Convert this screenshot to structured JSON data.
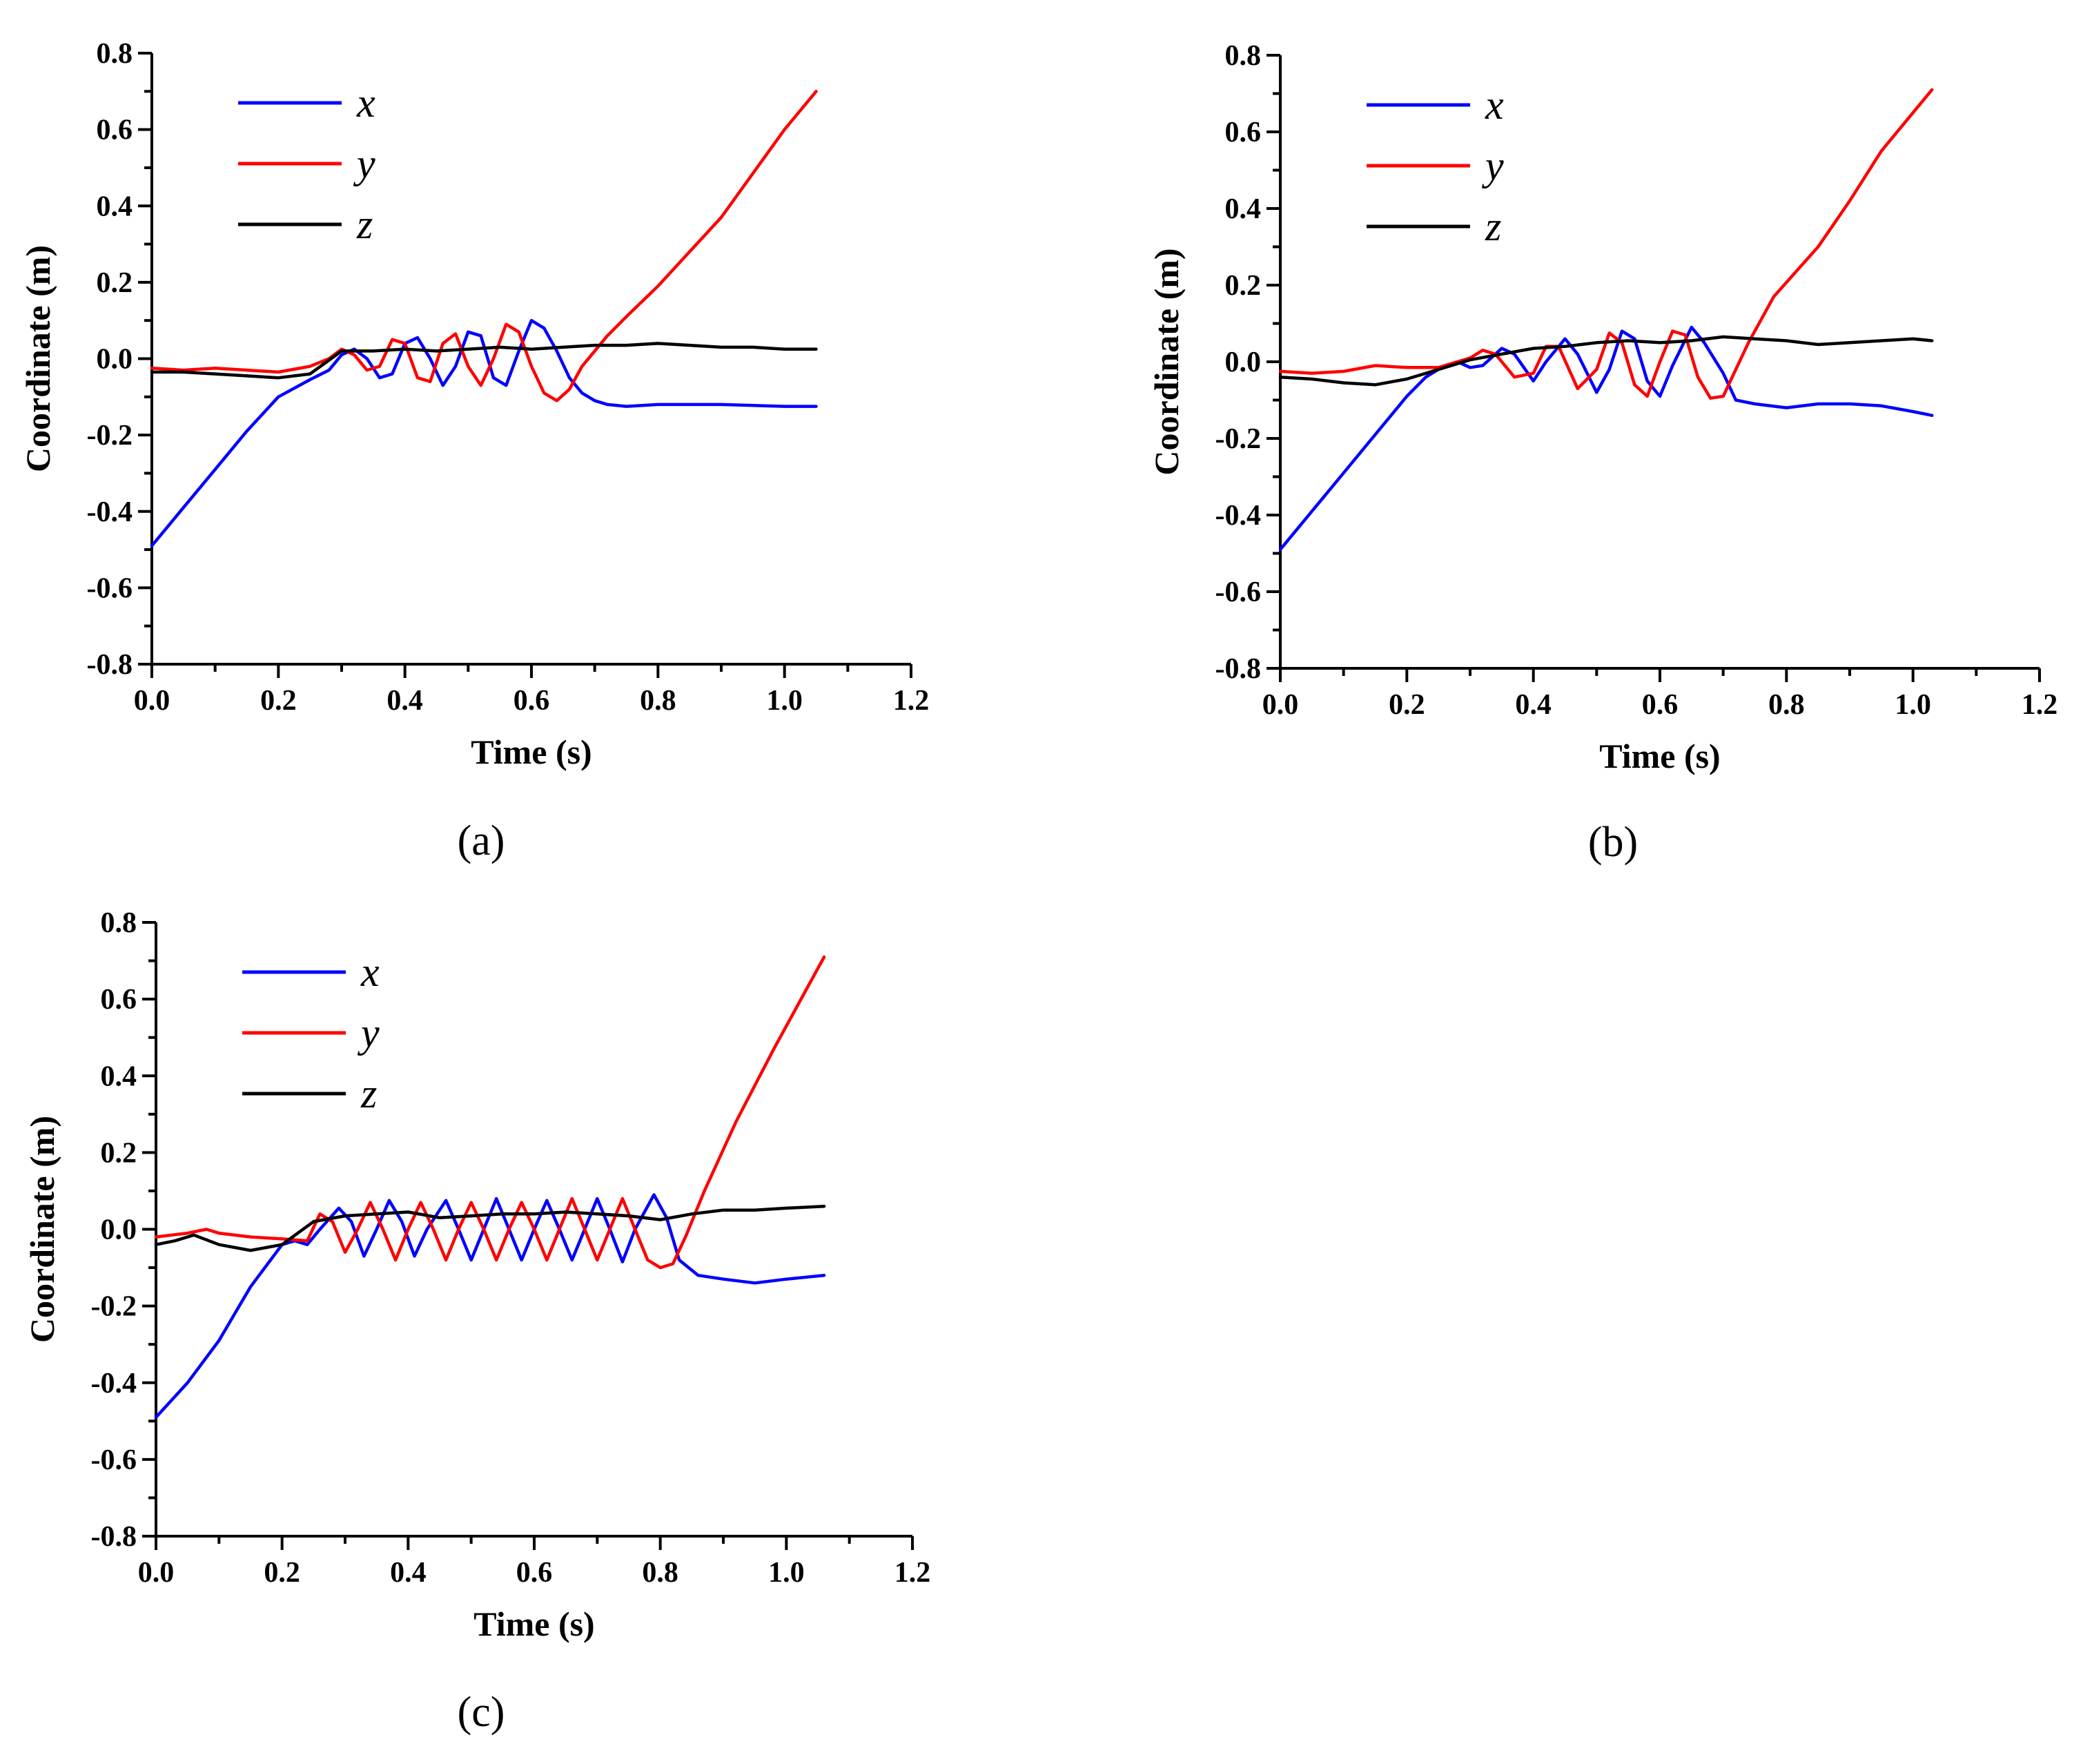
{
  "chart_data": [
    {
      "type": "line",
      "panel_label": "(a)",
      "xlabel": "Time (s)",
      "ylabel": "Coordinate (m)",
      "xlim": [
        0.0,
        1.2
      ],
      "ylim": [
        -0.8,
        0.8
      ],
      "xticks": [
        "0.0",
        "0.2",
        "0.4",
        "0.6",
        "0.8",
        "1.0",
        "1.2"
      ],
      "yticks": [
        "-0.8",
        "-0.6",
        "-0.4",
        "-0.2",
        "0.0",
        "0.2",
        "0.4",
        "0.6",
        "0.8"
      ],
      "legend_position": "top-left",
      "grid": false,
      "series": [
        {
          "name": "x",
          "color": "#0000ff",
          "x": [
            0.0,
            0.05,
            0.1,
            0.15,
            0.2,
            0.25,
            0.28,
            0.3,
            0.32,
            0.34,
            0.36,
            0.38,
            0.4,
            0.42,
            0.44,
            0.46,
            0.48,
            0.5,
            0.52,
            0.54,
            0.56,
            0.58,
            0.6,
            0.62,
            0.64,
            0.66,
            0.68,
            0.7,
            0.72,
            0.75,
            0.8,
            0.9,
            1.0,
            1.05
          ],
          "y": [
            -0.49,
            -0.39,
            -0.29,
            -0.19,
            -0.1,
            -0.055,
            -0.03,
            0.01,
            0.025,
            0.0,
            -0.05,
            -0.04,
            0.04,
            0.055,
            0.0,
            -0.07,
            -0.02,
            0.07,
            0.06,
            -0.05,
            -0.07,
            0.02,
            0.1,
            0.08,
            0.02,
            -0.05,
            -0.09,
            -0.11,
            -0.12,
            -0.125,
            -0.12,
            -0.12,
            -0.125,
            -0.125
          ]
        },
        {
          "name": "y",
          "color": "#ff0000",
          "x": [
            0.0,
            0.05,
            0.1,
            0.15,
            0.2,
            0.25,
            0.28,
            0.3,
            0.32,
            0.34,
            0.36,
            0.38,
            0.4,
            0.42,
            0.44,
            0.46,
            0.48,
            0.5,
            0.52,
            0.54,
            0.56,
            0.58,
            0.6,
            0.62,
            0.64,
            0.66,
            0.68,
            0.7,
            0.72,
            0.75,
            0.8,
            0.9,
            1.0,
            1.05
          ],
          "y": [
            -0.025,
            -0.03,
            -0.025,
            -0.03,
            -0.035,
            -0.02,
            0.0,
            0.025,
            0.01,
            -0.03,
            -0.02,
            0.05,
            0.04,
            -0.05,
            -0.06,
            0.04,
            0.065,
            -0.02,
            -0.07,
            0.0,
            0.09,
            0.07,
            -0.02,
            -0.09,
            -0.11,
            -0.08,
            -0.02,
            0.02,
            0.06,
            0.11,
            0.19,
            0.37,
            0.6,
            0.7
          ]
        },
        {
          "name": "z",
          "color": "#000000",
          "x": [
            0.0,
            0.05,
            0.1,
            0.15,
            0.2,
            0.25,
            0.3,
            0.35,
            0.4,
            0.45,
            0.5,
            0.55,
            0.6,
            0.65,
            0.7,
            0.75,
            0.8,
            0.85,
            0.9,
            0.95,
            1.0,
            1.05
          ],
          "y": [
            -0.035,
            -0.035,
            -0.04,
            -0.045,
            -0.05,
            -0.04,
            0.02,
            0.02,
            0.025,
            0.02,
            0.025,
            0.03,
            0.025,
            0.03,
            0.035,
            0.035,
            0.04,
            0.035,
            0.03,
            0.03,
            0.025,
            0.025
          ]
        }
      ]
    },
    {
      "type": "line",
      "panel_label": "(b)",
      "xlabel": "Time (s)",
      "ylabel": "Coordinate (m)",
      "xlim": [
        0.0,
        1.2
      ],
      "ylim": [
        -0.8,
        0.8
      ],
      "xticks": [
        "0.0",
        "0.2",
        "0.4",
        "0.6",
        "0.8",
        "1.0",
        "1.2"
      ],
      "yticks": [
        "-0.8",
        "-0.6",
        "-0.4",
        "-0.2",
        "0.0",
        "0.2",
        "0.4",
        "0.6",
        "0.8"
      ],
      "legend_position": "top-left",
      "grid": false,
      "series": [
        {
          "name": "x",
          "color": "#0000ff",
          "x": [
            0.0,
            0.05,
            0.1,
            0.15,
            0.2,
            0.23,
            0.26,
            0.28,
            0.3,
            0.32,
            0.35,
            0.37,
            0.4,
            0.42,
            0.45,
            0.47,
            0.5,
            0.52,
            0.54,
            0.56,
            0.58,
            0.6,
            0.62,
            0.65,
            0.67,
            0.7,
            0.72,
            0.75,
            0.8,
            0.85,
            0.9,
            0.95,
            1.0,
            1.03
          ],
          "y": [
            -0.49,
            -0.39,
            -0.29,
            -0.19,
            -0.09,
            -0.04,
            -0.01,
            0.0,
            -0.015,
            -0.01,
            0.035,
            0.02,
            -0.05,
            0.0,
            0.06,
            0.02,
            -0.08,
            -0.02,
            0.08,
            0.06,
            -0.05,
            -0.09,
            -0.01,
            0.09,
            0.05,
            -0.03,
            -0.1,
            -0.11,
            -0.12,
            -0.11,
            -0.11,
            -0.115,
            -0.13,
            -0.14
          ]
        },
        {
          "name": "y",
          "color": "#ff0000",
          "x": [
            0.0,
            0.05,
            0.1,
            0.15,
            0.2,
            0.25,
            0.3,
            0.32,
            0.34,
            0.37,
            0.4,
            0.42,
            0.44,
            0.47,
            0.5,
            0.52,
            0.54,
            0.56,
            0.58,
            0.6,
            0.62,
            0.64,
            0.66,
            0.68,
            0.7,
            0.72,
            0.74,
            0.78,
            0.85,
            0.9,
            0.95,
            1.0,
            1.03
          ],
          "y": [
            -0.025,
            -0.03,
            -0.025,
            -0.01,
            -0.015,
            -0.015,
            0.01,
            0.03,
            0.02,
            -0.04,
            -0.03,
            0.04,
            0.04,
            -0.07,
            -0.02,
            0.075,
            0.05,
            -0.06,
            -0.09,
            0.0,
            0.08,
            0.07,
            -0.04,
            -0.095,
            -0.09,
            -0.02,
            0.05,
            0.17,
            0.3,
            0.42,
            0.55,
            0.65,
            0.71
          ]
        },
        {
          "name": "z",
          "color": "#000000",
          "x": [
            0.0,
            0.05,
            0.1,
            0.15,
            0.2,
            0.25,
            0.3,
            0.35,
            0.4,
            0.45,
            0.5,
            0.55,
            0.6,
            0.65,
            0.7,
            0.75,
            0.8,
            0.85,
            0.9,
            0.95,
            1.0,
            1.03
          ],
          "y": [
            -0.04,
            -0.045,
            -0.055,
            -0.06,
            -0.045,
            -0.02,
            0.005,
            0.02,
            0.035,
            0.04,
            0.05,
            0.055,
            0.05,
            0.055,
            0.065,
            0.06,
            0.055,
            0.045,
            0.05,
            0.055,
            0.06,
            0.055
          ]
        }
      ]
    },
    {
      "type": "line",
      "panel_label": "(c)",
      "xlabel": "Time (s)",
      "ylabel": "Coordinate (m)",
      "xlim": [
        0.0,
        1.2
      ],
      "ylim": [
        -0.8,
        0.8
      ],
      "xticks": [
        "0.0",
        "0.2",
        "0.4",
        "0.6",
        "0.8",
        "1.0",
        "1.2"
      ],
      "yticks": [
        "-0.8",
        "-0.6",
        "-0.4",
        "-0.2",
        "0.0",
        "0.2",
        "0.4",
        "0.6",
        "0.8"
      ],
      "legend_position": "top-left",
      "grid": false,
      "series": [
        {
          "name": "x",
          "color": "#0000ff",
          "x": [
            0.0,
            0.05,
            0.1,
            0.15,
            0.2,
            0.22,
            0.24,
            0.26,
            0.29,
            0.31,
            0.33,
            0.35,
            0.37,
            0.39,
            0.41,
            0.43,
            0.46,
            0.48,
            0.5,
            0.52,
            0.54,
            0.56,
            0.58,
            0.6,
            0.62,
            0.64,
            0.66,
            0.68,
            0.7,
            0.72,
            0.74,
            0.76,
            0.79,
            0.81,
            0.83,
            0.86,
            0.9,
            0.95,
            1.0,
            1.06
          ],
          "y": [
            -0.49,
            -0.4,
            -0.29,
            -0.15,
            -0.04,
            -0.03,
            -0.04,
            0.0,
            0.055,
            0.02,
            -0.07,
            0.0,
            0.075,
            0.02,
            -0.07,
            0.0,
            0.075,
            0.0,
            -0.08,
            0.0,
            0.08,
            0.0,
            -0.08,
            0.0,
            0.075,
            0.0,
            -0.08,
            0.0,
            0.08,
            0.0,
            -0.085,
            0.0,
            0.09,
            0.03,
            -0.08,
            -0.12,
            -0.13,
            -0.14,
            -0.13,
            -0.12
          ]
        },
        {
          "name": "y",
          "color": "#ff0000",
          "x": [
            0.0,
            0.05,
            0.08,
            0.1,
            0.15,
            0.2,
            0.24,
            0.26,
            0.28,
            0.3,
            0.32,
            0.34,
            0.36,
            0.38,
            0.4,
            0.42,
            0.44,
            0.46,
            0.48,
            0.5,
            0.52,
            0.54,
            0.56,
            0.58,
            0.6,
            0.62,
            0.64,
            0.66,
            0.68,
            0.7,
            0.72,
            0.74,
            0.76,
            0.78,
            0.8,
            0.82,
            0.84,
            0.87,
            0.92,
            0.98,
            1.03,
            1.06
          ],
          "y": [
            -0.02,
            -0.01,
            0.0,
            -0.01,
            -0.02,
            -0.025,
            -0.03,
            0.04,
            0.02,
            -0.06,
            0.0,
            0.07,
            0.0,
            -0.08,
            0.0,
            0.07,
            0.0,
            -0.08,
            0.0,
            0.07,
            0.0,
            -0.08,
            0.0,
            0.07,
            0.0,
            -0.08,
            0.0,
            0.08,
            0.0,
            -0.08,
            0.0,
            0.08,
            0.0,
            -0.08,
            -0.1,
            -0.09,
            -0.02,
            0.1,
            0.28,
            0.47,
            0.62,
            0.71
          ]
        },
        {
          "name": "z",
          "color": "#000000",
          "x": [
            0.0,
            0.03,
            0.06,
            0.1,
            0.15,
            0.2,
            0.25,
            0.3,
            0.35,
            0.4,
            0.45,
            0.5,
            0.55,
            0.6,
            0.65,
            0.7,
            0.75,
            0.8,
            0.85,
            0.9,
            0.95,
            1.0,
            1.06
          ],
          "y": [
            -0.04,
            -0.03,
            -0.015,
            -0.04,
            -0.055,
            -0.04,
            0.02,
            0.035,
            0.04,
            0.045,
            0.03,
            0.035,
            0.04,
            0.04,
            0.045,
            0.04,
            0.035,
            0.025,
            0.04,
            0.05,
            0.05,
            0.055,
            0.06
          ]
        }
      ]
    }
  ]
}
